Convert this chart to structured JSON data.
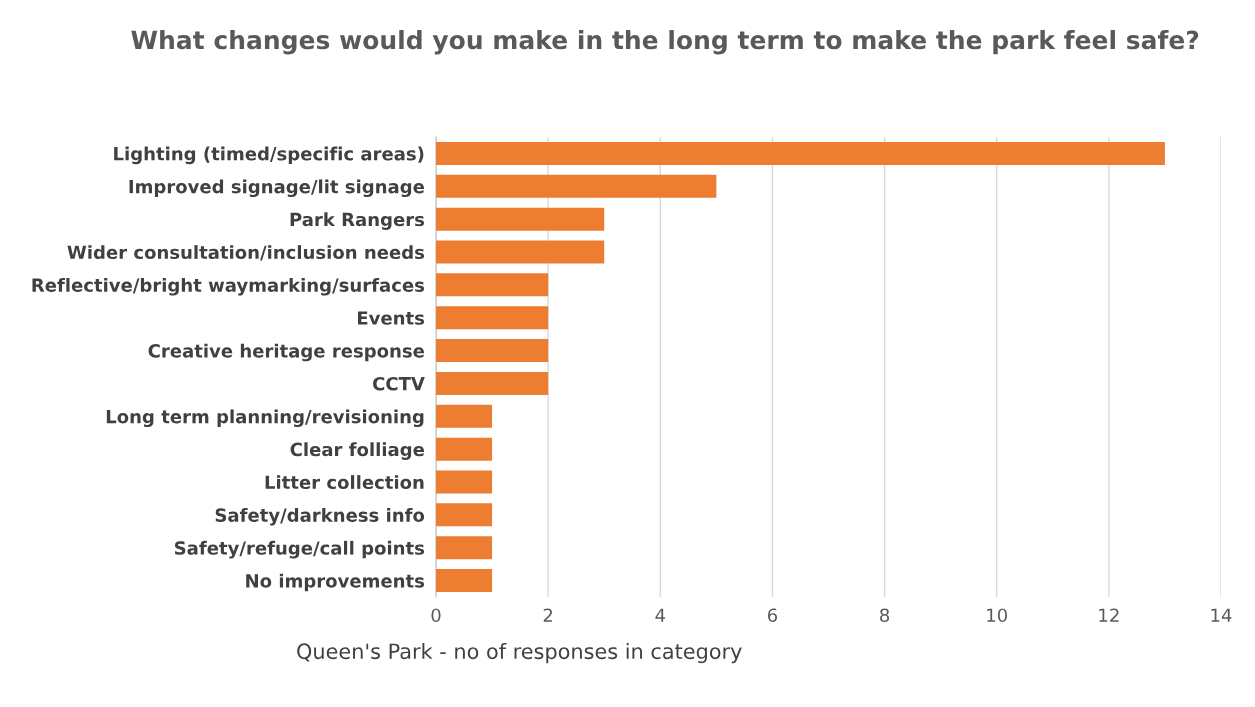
{
  "chart_data": {
    "type": "bar",
    "orientation": "horizontal",
    "title": "What changes would you make in the long term to make the park feel safe?",
    "xlabel": "Queen's Park - no of responses in category",
    "categories": [
      "Lighting (timed/specific areas)",
      "Improved signage/lit signage",
      "Park Rangers",
      "Wider consultation/inclusion needs",
      "Reflective/bright waymarking/surfaces",
      "Events",
      "Creative heritage response",
      "CCTV",
      "Long term planning/revisioning",
      "Clear folliage",
      "Litter collection",
      "Safety/darkness info",
      "Safety/refuge/call points",
      "No improvements"
    ],
    "values": [
      13,
      5,
      3,
      3,
      2,
      2,
      2,
      2,
      1,
      1,
      1,
      1,
      1,
      1
    ],
    "color": "#ed7d31",
    "xlim": [
      0,
      14
    ],
    "xticks": [
      0,
      2,
      4,
      6,
      8,
      10,
      12,
      14
    ],
    "grid": "x"
  }
}
